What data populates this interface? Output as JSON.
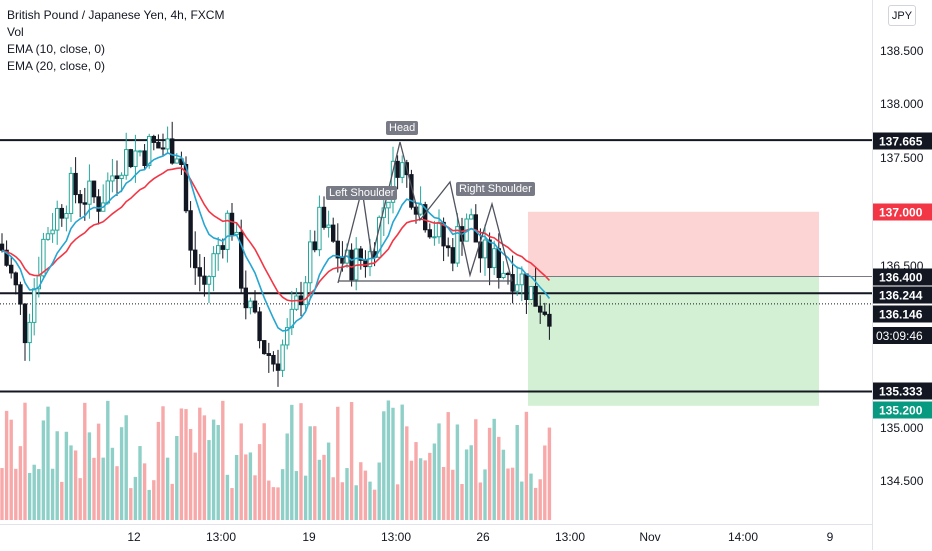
{
  "legend": {
    "title": "British Pound / Japanese Yen, 4h, FXCM",
    "vol": "Vol",
    "ema10": "EMA (10, close, 0)",
    "ema20": "EMA (20, close, 0)"
  },
  "currency": "JPY",
  "price_axis": {
    "ticks": [
      "138.500",
      "138.000",
      "137.500",
      "136.500",
      "135.000",
      "134.500"
    ]
  },
  "price_labels": {
    "resistance": "137.665",
    "stop": "137.000",
    "entry": "136.400",
    "neckline": "136.244",
    "current": "136.146",
    "countdown": "03:09:46",
    "support": "135.333",
    "target": "135.200"
  },
  "time_axis": [
    "12",
    "13:00",
    "19",
    "13:00",
    "26",
    "13:00",
    "Nov",
    "14:00",
    "9"
  ],
  "pattern": {
    "left_shoulder": "Left Shoulder",
    "head": "Head",
    "right_shoulder": "Right Shoulder"
  },
  "colors": {
    "bull": "#26a69a",
    "bear": "#131722",
    "ema10": "#26a6d1",
    "ema20": "#f23645",
    "vol_up": "#8ecfc7",
    "vol_down": "#f7a8a8",
    "stop_zone": "#fcc9c9",
    "target_zone": "#c9ecc9"
  },
  "chart_data": {
    "type": "candlestick",
    "symbol": "GBPJPY",
    "interval": "4h",
    "horizontal_levels": [
      137.665,
      136.244,
      135.333
    ],
    "position": {
      "entry": 136.4,
      "stop": 137.0,
      "target": 135.2
    },
    "last_price": 136.146,
    "y_range": [
      134.3,
      138.9
    ]
  }
}
